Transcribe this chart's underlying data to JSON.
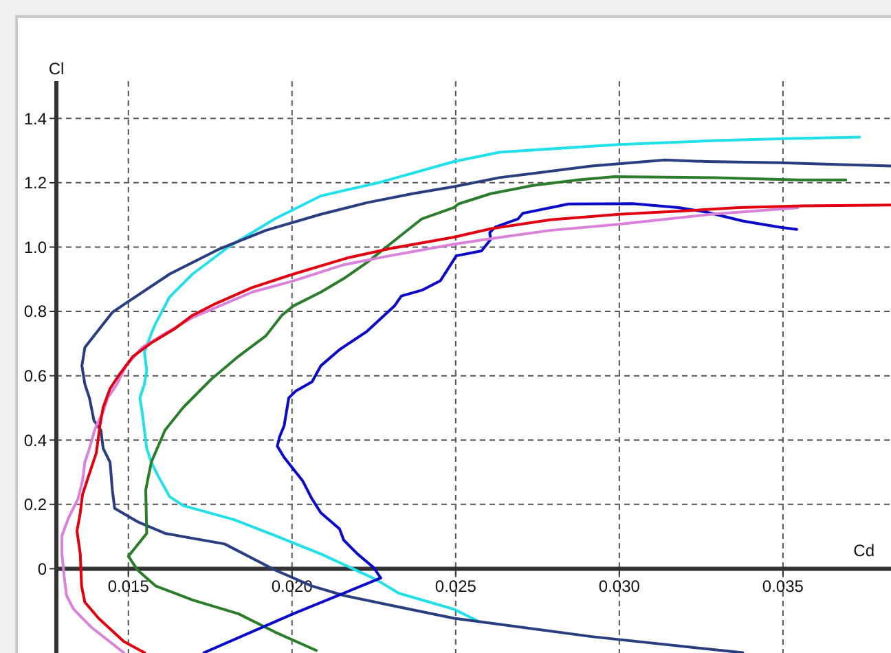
{
  "chart_data": {
    "type": "line",
    "xlabel": "Cd",
    "ylabel": "Cl",
    "xlim": [
      0.0128,
      0.0383
    ],
    "ylim": [
      -0.262,
      1.516
    ],
    "xticks": [
      0.015,
      {
        "value": 0.02,
        "label": "0.020"
      },
      0.025,
      {
        "value": 0.03,
        "label": "0.030"
      },
      0.035
    ],
    "yticks": [
      0,
      0.2,
      0.4,
      0.6,
      0.8,
      {
        "value": 1,
        "label": "1.0"
      },
      1.2,
      1.4
    ],
    "grid": true,
    "series": [
      {
        "color": "#22e0e8",
        "x": [
          0.02565,
          0.02495,
          0.02326,
          0.02256,
          0.02088,
          0.01948,
          0.01822,
          0.01668,
          0.01626,
          0.01591,
          0.0157,
          0.01556,
          0.01549,
          0.01542,
          0.01535,
          0.01549,
          0.01556,
          0.01549,
          0.0157,
          0.01583,
          0.01626,
          0.01696,
          0.01808,
          0.01948,
          0.02088,
          0.02271,
          0.02495,
          0.02634,
          0.02999,
          0.03293,
          0.035,
          0.03734
        ],
        "values": [
          -0.161,
          -0.126,
          -0.076,
          -0.033,
          0.046,
          0.103,
          0.153,
          0.196,
          0.224,
          0.288,
          0.331,
          0.374,
          0.431,
          0.488,
          0.531,
          0.574,
          0.617,
          0.674,
          0.731,
          0.762,
          0.845,
          0.916,
          1.002,
          1.088,
          1.159,
          1.202,
          1.266,
          1.295,
          1.319,
          1.331,
          1.337,
          1.342
        ]
      },
      {
        "color": "#2a3d7e",
        "x": [
          0.03377,
          0.02915,
          0.02495,
          0.02326,
          0.02158,
          0.02061,
          0.01948,
          0.01794,
          0.01612,
          0.01528,
          0.01458,
          0.01451,
          0.01444,
          0.01423,
          0.01416,
          0.01395,
          0.01381,
          0.01367,
          0.01358,
          0.01367,
          0.01411,
          0.01451,
          0.015,
          0.01626,
          0.0178,
          0.0192,
          0.02088,
          0.02229,
          0.02368,
          0.02495,
          0.02634,
          0.02915,
          0.03139,
          0.03265,
          0.03489,
          0.03699,
          0.0383
        ],
        "values": [
          -0.261,
          -0.211,
          -0.154,
          -0.119,
          -0.083,
          -0.054,
          -0.004,
          0.077,
          0.11,
          0.146,
          0.188,
          0.245,
          0.331,
          0.374,
          0.431,
          0.46,
          0.531,
          0.574,
          0.631,
          0.688,
          0.745,
          0.797,
          0.831,
          0.916,
          0.995,
          1.052,
          1.102,
          1.138,
          1.166,
          1.188,
          1.216,
          1.252,
          1.271,
          1.266,
          1.262,
          1.256,
          1.252
        ]
      },
      {
        "color": "#2b7d2b",
        "x": [
          0.02074,
          0.01948,
          0.01836,
          0.01696,
          0.01584,
          0.01528,
          0.015,
          0.01556,
          0.01553,
          0.0157,
          0.01612,
          0.01668,
          0.01752,
          0.01836,
          0.0192,
          0.01969,
          0.02004,
          0.02088,
          0.02158,
          0.02229,
          0.02326,
          0.02397,
          0.02495,
          0.02508,
          0.02607,
          0.02733,
          0.02873,
          0.02985,
          0.03293,
          0.03545,
          0.03692
        ],
        "values": [
          -0.254,
          -0.197,
          -0.14,
          -0.097,
          -0.054,
          -0.004,
          0.039,
          0.11,
          0.245,
          0.331,
          0.431,
          0.502,
          0.588,
          0.66,
          0.724,
          0.788,
          0.817,
          0.86,
          0.902,
          0.952,
          1.031,
          1.088,
          1.123,
          1.134,
          1.166,
          1.191,
          1.209,
          1.219,
          1.216,
          1.209,
          1.209
        ]
      },
      {
        "color": "#0a0ac8",
        "x": [
          0.01731,
          0.02004,
          0.02271,
          0.0225,
          0.022,
          0.02158,
          0.02145,
          0.02088,
          0.02061,
          0.02032,
          0.01976,
          0.01955,
          0.01962,
          0.01976,
          0.0199,
          0.02011,
          0.02061,
          0.02088,
          0.02145,
          0.02229,
          0.02313,
          0.02334,
          0.02397,
          0.02453,
          0.02502,
          0.02579,
          0.02607,
          0.02604,
          0.02621,
          0.02691,
          0.02705,
          0.02845,
          0.03041,
          0.03181,
          0.03265,
          0.03377,
          0.03489,
          0.03542
        ],
        "values": [
          -0.261,
          -0.14,
          -0.029,
          0.003,
          0.046,
          0.089,
          0.124,
          0.174,
          0.217,
          0.274,
          0.346,
          0.381,
          0.41,
          0.445,
          0.531,
          0.552,
          0.581,
          0.631,
          0.681,
          0.738,
          0.817,
          0.848,
          0.866,
          0.895,
          0.973,
          0.988,
          1.024,
          1.045,
          1.062,
          1.088,
          1.105,
          1.134,
          1.135,
          1.123,
          1.109,
          1.081,
          1.062,
          1.055
        ]
      },
      {
        "color": "#d982d9",
        "x": [
          0.01486,
          0.01388,
          0.01332,
          0.01311,
          0.01304,
          0.01297,
          0.01297,
          0.01318,
          0.01346,
          0.0136,
          0.01367,
          0.01381,
          0.01395,
          0.01402,
          0.01423,
          0.01437,
          0.01465,
          0.01493,
          0.01542,
          0.01612,
          0.01696,
          0.01878,
          0.02004,
          0.02158,
          0.02298,
          0.02495,
          0.02592,
          0.02789,
          0.02999,
          0.03153,
          0.03279,
          0.03545
        ],
        "values": [
          -0.261,
          -0.183,
          -0.125,
          -0.083,
          -0.026,
          0.046,
          0.103,
          0.16,
          0.217,
          0.274,
          0.331,
          0.374,
          0.424,
          0.445,
          0.488,
          0.531,
          0.574,
          0.631,
          0.688,
          0.731,
          0.781,
          0.86,
          0.895,
          0.945,
          0.973,
          1.009,
          1.024,
          1.052,
          1.071,
          1.088,
          1.102,
          1.122
        ]
      },
      {
        "color": "#e0000f",
        "x": [
          0.01549,
          0.01486,
          0.01409,
          0.01367,
          0.01357,
          0.01353,
          0.01343,
          0.01353,
          0.0136,
          0.01381,
          0.01402,
          0.01413,
          0.01423,
          0.01444,
          0.01472,
          0.01514,
          0.0157,
          0.0164,
          0.01696,
          0.01766,
          0.01878,
          0.02004,
          0.02172,
          0.02298,
          0.02495,
          0.02607,
          0.02789,
          0.02999,
          0.03209,
          0.03363,
          0.03559,
          0.0383
        ],
        "values": [
          -0.261,
          -0.226,
          -0.154,
          -0.104,
          -0.054,
          0.046,
          0.117,
          0.174,
          0.231,
          0.296,
          0.36,
          0.445,
          0.502,
          0.56,
          0.603,
          0.66,
          0.702,
          0.745,
          0.788,
          0.824,
          0.874,
          0.916,
          0.967,
          0.995,
          1.031,
          1.057,
          1.085,
          1.102,
          1.113,
          1.123,
          1.128,
          1.131
        ]
      }
    ]
  }
}
